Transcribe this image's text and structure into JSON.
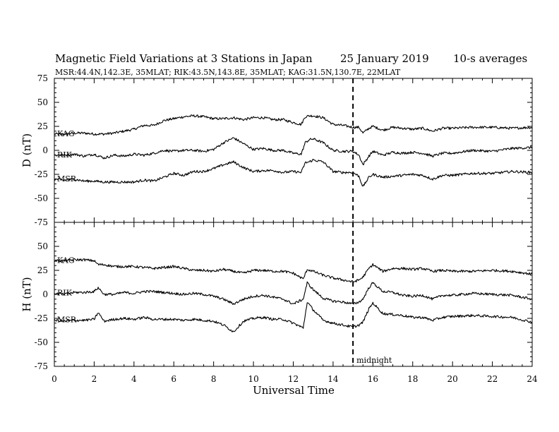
{
  "header": {
    "title": "Magnetic Field Variations at 3 Stations in Japan",
    "date": "25 January  2019",
    "averaging": "10-s averages",
    "stations_line": "MSR:44.4N,142.3E, 35MLAT;  RIK:43.5N,143.8E, 35MLAT;  KAG:31.5N,130.7E, 22MLAT"
  },
  "chart_data": {
    "type": "line",
    "xlabel": "Universal Time",
    "xlim": [
      0,
      24
    ],
    "xticks": [
      "0",
      "2",
      "4",
      "6",
      "8",
      "10",
      "12",
      "14",
      "16",
      "18",
      "20",
      "22",
      "24"
    ],
    "marker": {
      "x": 15,
      "label": "midnight",
      "style": "dashed"
    },
    "panels": [
      {
        "ylabel": "D (nT)",
        "ylim": [
          -75,
          75
        ],
        "yticks": [
          "75",
          "50",
          "25",
          "0",
          "-25",
          "-50",
          "-75"
        ],
        "series": [
          {
            "name": "KAG",
            "x": [
              0,
              0.5,
              1,
              1.5,
              2,
              2.5,
              3,
              3.5,
              4,
              4.5,
              5,
              5.5,
              6,
              6.5,
              7,
              7.5,
              8,
              8.5,
              9,
              9.5,
              10,
              10.5,
              11,
              11.5,
              12,
              12.4,
              12.6,
              12.8,
              13,
              13.5,
              14,
              14.5,
              15,
              15.3,
              15.5,
              15.8,
              16,
              16.5,
              17,
              17.5,
              18,
              18.5,
              19,
              19.5,
              20,
              21,
              22,
              23,
              24
            ],
            "y": [
              17,
              17,
              18,
              18,
              17,
              17,
              18,
              20,
              22,
              26,
              26,
              31,
              33,
              35,
              36,
              35,
              33,
              33,
              34,
              32,
              34,
              34,
              32,
              32,
              29,
              27,
              35,
              36,
              36,
              34,
              27,
              26,
              24,
              24,
              18,
              23,
              25,
              21,
              24,
              23,
              22,
              23,
              20,
              23,
              23,
              24,
              24,
              23,
              24
            ]
          },
          {
            "name": "RIK",
            "x": [
              0,
              0.5,
              1,
              1.5,
              2,
              2.5,
              3,
              3.5,
              4,
              4.5,
              5,
              5.5,
              6,
              6.5,
              7,
              7.5,
              8,
              8.5,
              9,
              9.5,
              10,
              10.5,
              11,
              11.5,
              12,
              12.4,
              12.6,
              12.8,
              13,
              13.5,
              14,
              14.5,
              15,
              15.3,
              15.5,
              15.8,
              16,
              16.5,
              17,
              17.5,
              18,
              18.5,
              19,
              19.5,
              20,
              21,
              22,
              23,
              24
            ],
            "y": [
              -5,
              -5,
              -4,
              -6,
              -4,
              -8,
              -5,
              -6,
              -4,
              -5,
              -3,
              0,
              -1,
              0,
              0,
              -1,
              1,
              8,
              13,
              7,
              1,
              2,
              0,
              0,
              -3,
              -4,
              8,
              11,
              12,
              8,
              0,
              -1,
              -1,
              -5,
              -15,
              -6,
              -1,
              -5,
              -2,
              -3,
              -2,
              -3,
              -6,
              -3,
              -3,
              0,
              -1,
              2,
              3
            ]
          },
          {
            "name": "MSR",
            "x": [
              0,
              0.5,
              1,
              1.5,
              2,
              2.5,
              3,
              3.5,
              4,
              4.5,
              5,
              5.5,
              6,
              6.5,
              7,
              7.5,
              8,
              8.5,
              9,
              9.5,
              10,
              10.5,
              11,
              11.5,
              12,
              12.4,
              12.6,
              12.8,
              13,
              13.5,
              14,
              14.5,
              15,
              15.3,
              15.5,
              15.8,
              16,
              16.5,
              17,
              17.5,
              18,
              18.5,
              19,
              19.5,
              20,
              21,
              22,
              23,
              24
            ],
            "y": [
              -30,
              -31,
              -30,
              -32,
              -32,
              -33,
              -33,
              -33,
              -33,
              -31,
              -32,
              -28,
              -24,
              -26,
              -22,
              -22,
              -19,
              -15,
              -12,
              -18,
              -22,
              -21,
              -21,
              -23,
              -22,
              -23,
              -13,
              -12,
              -10,
              -12,
              -22,
              -23,
              -23,
              -27,
              -38,
              -28,
              -25,
              -28,
              -27,
              -26,
              -25,
              -26,
              -30,
              -26,
              -26,
              -24,
              -24,
              -22,
              -23
            ]
          }
        ]
      },
      {
        "ylabel": "H (nT)",
        "ylim": [
          -75,
          75
        ],
        "yticks": [
          "75",
          "50",
          "25",
          "0",
          "-25",
          "-50",
          "-75"
        ],
        "series": [
          {
            "name": "KAG",
            "x": [
              0,
              0.5,
              1,
              1.5,
              2,
              2.2,
              2.5,
              3,
              3.5,
              4,
              4.5,
              5,
              5.5,
              6,
              6.5,
              7,
              7.5,
              8,
              8.5,
              9,
              9.5,
              10,
              10.5,
              11,
              11.5,
              12,
              12.5,
              12.7,
              13,
              13.5,
              14,
              14.5,
              15,
              15.3,
              15.5,
              15.8,
              16,
              16.5,
              17,
              17.5,
              18,
              18.5,
              19,
              19.5,
              20,
              21,
              22,
              23,
              24
            ],
            "y": [
              35,
              35,
              36,
              36,
              35,
              31,
              31,
              29,
              29,
              29,
              28,
              27,
              28,
              29,
              27,
              25,
              25,
              24,
              26,
              24,
              22,
              25,
              25,
              24,
              24,
              22,
              16,
              26,
              24,
              20,
              17,
              15,
              13,
              15,
              18,
              27,
              31,
              24,
              27,
              27,
              26,
              27,
              24,
              25,
              24,
              24,
              25,
              24,
              21
            ]
          },
          {
            "name": "RIK",
            "x": [
              0,
              0.5,
              1,
              1.5,
              2,
              2.2,
              2.5,
              3,
              3.5,
              4,
              4.5,
              5,
              5.5,
              6,
              6.5,
              7,
              7.5,
              8,
              8.5,
              9,
              9.5,
              10,
              10.5,
              11,
              11.5,
              12,
              12.5,
              12.7,
              13,
              13.5,
              14,
              14.5,
              15,
              15.3,
              15.5,
              15.8,
              16,
              16.5,
              17,
              17.5,
              18,
              18.5,
              19,
              19.5,
              20,
              21,
              22,
              23,
              24
            ],
            "y": [
              1,
              0,
              2,
              2,
              3,
              7,
              0,
              0,
              2,
              1,
              3,
              3,
              2,
              1,
              0,
              1,
              0,
              -2,
              -5,
              -10,
              -5,
              -2,
              -1,
              -3,
              -5,
              -10,
              -5,
              12,
              5,
              -4,
              -7,
              -8,
              -10,
              -8,
              -5,
              7,
              12,
              3,
              2,
              -1,
              -2,
              -1,
              -5,
              -1,
              -1,
              1,
              0,
              -1,
              -5
            ]
          },
          {
            "name": "MSR",
            "x": [
              0,
              0.5,
              1,
              1.5,
              2,
              2.2,
              2.5,
              3,
              3.5,
              4,
              4.5,
              5,
              5.5,
              6,
              6.5,
              7,
              7.5,
              8,
              8.5,
              9,
              9.5,
              10,
              10.5,
              11,
              11.5,
              12,
              12.5,
              12.7,
              13,
              13.5,
              14,
              14.5,
              15,
              15.3,
              15.5,
              15.8,
              16,
              16.5,
              17,
              17.5,
              18,
              18.5,
              19,
              19.5,
              20,
              21,
              22,
              23,
              24
            ],
            "y": [
              -27,
              -28,
              -27,
              -27,
              -26,
              -19,
              -28,
              -26,
              -25,
              -26,
              -24,
              -26,
              -26,
              -26,
              -27,
              -26,
              -27,
              -28,
              -32,
              -39,
              -28,
              -25,
              -24,
              -26,
              -26,
              -30,
              -35,
              -8,
              -16,
              -27,
              -30,
              -32,
              -34,
              -32,
              -29,
              -15,
              -9,
              -20,
              -21,
              -22,
              -24,
              -24,
              -27,
              -24,
              -23,
              -22,
              -23,
              -24,
              -29
            ]
          }
        ]
      }
    ]
  }
}
